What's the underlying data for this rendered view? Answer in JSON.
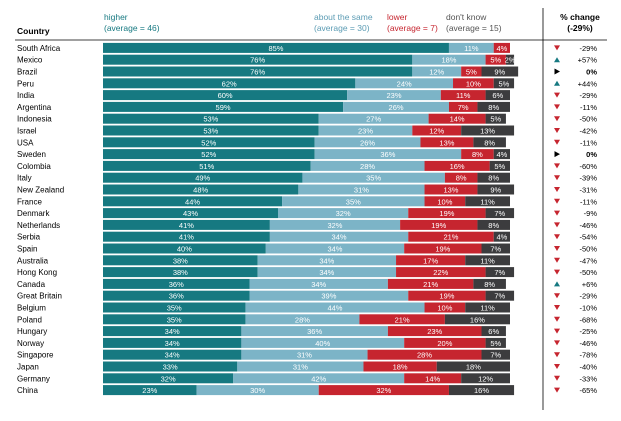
{
  "colors": {
    "higher": "#167981",
    "same": "#7cb4c7",
    "lower": "#c6252f",
    "dontknow": "#3c3c3e",
    "arrow_down": "#c6252f",
    "arrow_up": "#167981",
    "arrow_flat": "#000000"
  },
  "chart_data": {
    "type": "bar",
    "stacked": true,
    "orientation": "horizontal",
    "normalized_percent": true,
    "header": {
      "country": "Country",
      "higher": "higher",
      "higher_avg": "(average = 46)",
      "same": "about the same",
      "same_avg": "(average = 30)",
      "lower": "lower",
      "lower_avg": "(average = 7)",
      "dontknow": "don't know",
      "dontknow_avg": "(average = 15)",
      "change": "% change",
      "change_avg": "(-29%)"
    },
    "categories": [
      "South Africa",
      "Mexico",
      "Brazil",
      "Peru",
      "India",
      "Argentina",
      "Indonesia",
      "Israel",
      "USA",
      "Sweden",
      "Colombia",
      "Italy",
      "New Zealand",
      "France",
      "Denmark",
      "Netherlands",
      "Serbia",
      "Spain",
      "Australia",
      "Hong Kong",
      "Canada",
      "Great Britain",
      "Belgium",
      "Poland",
      "Hungary",
      "Norway",
      "Singapore",
      "Japan",
      "Germany",
      "China"
    ],
    "series": [
      {
        "name": "higher",
        "values": [
          85,
          76,
          76,
          62,
          60,
          59,
          53,
          53,
          52,
          52,
          51,
          49,
          48,
          44,
          43,
          41,
          41,
          40,
          38,
          38,
          36,
          36,
          35,
          35,
          34,
          34,
          34,
          33,
          32,
          23
        ]
      },
      {
        "name": "about the same",
        "values": [
          11,
          18,
          12,
          24,
          23,
          26,
          27,
          23,
          26,
          36,
          28,
          35,
          31,
          35,
          32,
          32,
          34,
          34,
          34,
          34,
          34,
          39,
          44,
          28,
          36,
          40,
          31,
          31,
          42,
          30
        ]
      },
      {
        "name": "lower",
        "values": [
          4,
          5,
          5,
          10,
          11,
          7,
          14,
          12,
          13,
          8,
          16,
          8,
          13,
          10,
          19,
          19,
          21,
          19,
          17,
          22,
          21,
          19,
          10,
          21,
          23,
          20,
          28,
          18,
          14,
          32
        ]
      },
      {
        "name": "don't know",
        "values": [
          0,
          2,
          9,
          5,
          6,
          8,
          5,
          13,
          8,
          4,
          5,
          8,
          9,
          11,
          7,
          8,
          4,
          7,
          11,
          7,
          8,
          7,
          11,
          16,
          6,
          5,
          7,
          18,
          12,
          16
        ]
      }
    ],
    "labels": {
      "higher": [
        "85%",
        "76%",
        "76%",
        "62%",
        "60%",
        "59%",
        "53%",
        "53%",
        "52%",
        "52%",
        "51%",
        "49%",
        "48%",
        "44%",
        "43%",
        "41%",
        "41%",
        "40%",
        "38%",
        "38%",
        "36%",
        "36%",
        "35%",
        "35%",
        "34%",
        "34%",
        "34%",
        "33%",
        "32%",
        "23%"
      ],
      "same": [
        "11%",
        "18%",
        "12%",
        "24%",
        "23%",
        "26%",
        "27%",
        "23%",
        "26%",
        "36%",
        "28%",
        "35%",
        "31%",
        "35%",
        "32%",
        "32%",
        "34%",
        "34%",
        "34%",
        "34%",
        "34%",
        "39%",
        "44%",
        "28%",
        "36%",
        "40%",
        "31%",
        "31%",
        "42%",
        "30%"
      ],
      "lower": [
        "4%",
        "5%",
        "5%",
        "10%",
        "11%",
        "7%",
        "14%",
        "12%",
        "13%",
        "8%",
        "16%",
        "8%",
        "13%",
        "10%",
        "19%",
        "19%",
        "21%",
        "19%",
        "17%",
        "22%",
        "21%",
        "19%",
        "10%",
        "21%",
        "23%",
        "20%",
        "28%",
        "18%",
        "14%",
        "32%"
      ],
      "dontknow": [
        "",
        "2%",
        "9%",
        "5%",
        "6%",
        "8%",
        "5%",
        "13%",
        "8%",
        "4%",
        "5%",
        "8%",
        "9%",
        "11%",
        "7%",
        "8%",
        "4%",
        "7%",
        "11%",
        "7%",
        "8%",
        "7%",
        "11%",
        "16%",
        "6%",
        "5%",
        "7%",
        "18%",
        "12%",
        "16%"
      ]
    },
    "change": [
      "-29%",
      "+57%",
      "0%",
      "+44%",
      "-29%",
      "-11%",
      "-50%",
      "-42%",
      "-11%",
      "0%",
      "-60%",
      "-39%",
      "-31%",
      "-11%",
      "-9%",
      "-46%",
      "-54%",
      "-50%",
      "-47%",
      "-50%",
      "+6%",
      "-29%",
      "-10%",
      "-68%",
      "-25%",
      "-46%",
      "-78%",
      "-40%",
      "-33%",
      "-65%"
    ],
    "change_direction": [
      "down",
      "up",
      "flat",
      "up",
      "down",
      "down",
      "down",
      "down",
      "down",
      "flat",
      "down",
      "down",
      "down",
      "down",
      "down",
      "down",
      "down",
      "down",
      "down",
      "down",
      "up",
      "down",
      "down",
      "down",
      "down",
      "down",
      "down",
      "down",
      "down",
      "down"
    ],
    "xlim": [
      0,
      100
    ],
    "grid": false
  }
}
